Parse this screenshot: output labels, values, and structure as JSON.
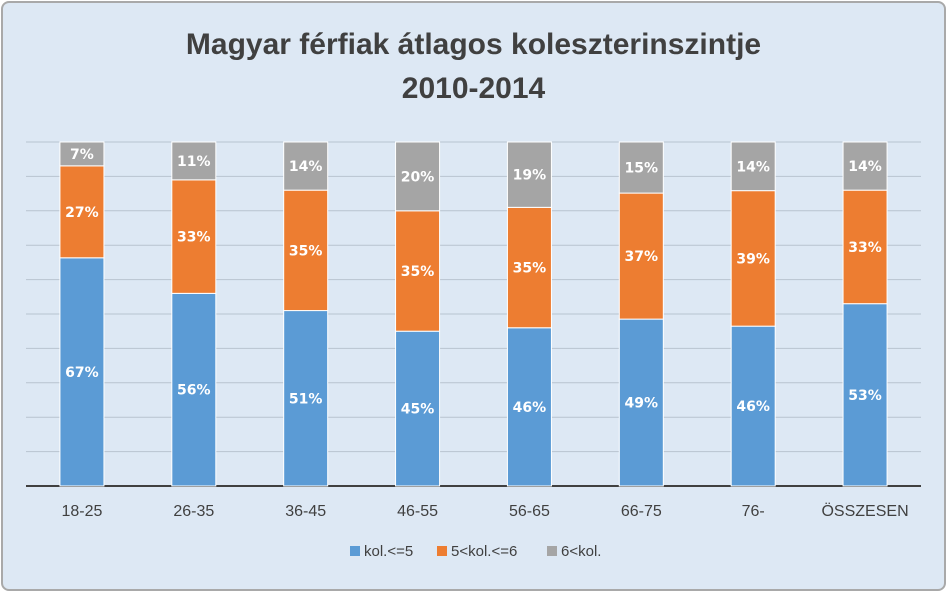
{
  "chart_data": {
    "type": "bar",
    "stacked": true,
    "title_line1": "Magyar férfiak átlagos koleszterinszintje",
    "title_line2": "2010-2014",
    "categories": [
      "18-25",
      "26-35",
      "36-45",
      "46-55",
      "56-65",
      "66-75",
      "76-",
      "ÖSSZESEN"
    ],
    "series": [
      {
        "name": "kol.<=5",
        "color": "#5b9bd5",
        "values": [
          67,
          56,
          51,
          45,
          46,
          49,
          46,
          53
        ]
      },
      {
        "name": "5<kol.<=6",
        "color": "#ed7d31",
        "values": [
          27,
          33,
          35,
          35,
          35,
          37,
          39,
          33
        ]
      },
      {
        "name": "6<kol.",
        "color": "#a5a5a5",
        "values": [
          7,
          11,
          14,
          20,
          19,
          15,
          14,
          14
        ]
      }
    ],
    "value_suffix": "%",
    "ylim": [
      0,
      100
    ],
    "grid": true,
    "legend_position": "bottom"
  }
}
